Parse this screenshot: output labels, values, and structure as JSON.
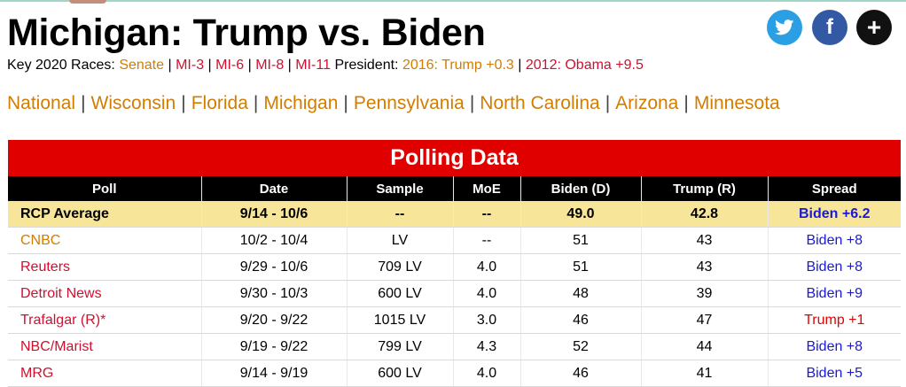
{
  "page": {
    "title": "Michigan: Trump vs. Biden",
    "key_races_label": "Key 2020 Races:",
    "key_races": [
      "Senate",
      "MI-3",
      "MI-6",
      "MI-8",
      "MI-11"
    ],
    "president_label": "President:",
    "president_links": [
      "2016: Trump +0.3",
      "2012: Obama +9.5"
    ]
  },
  "social": {
    "twitter_icon": "twitter-icon",
    "facebook_label": "f",
    "plus_label": "+"
  },
  "nav": {
    "items": [
      "National",
      "Wisconsin",
      "Florida",
      "Michigan",
      "Pennsylvania",
      "North Carolina",
      "Arizona",
      "Minnesota"
    ]
  },
  "table": {
    "title": "Polling Data",
    "headers": [
      "Poll",
      "Date",
      "Sample",
      "MoE",
      "Biden (D)",
      "Trump (R)",
      "Spread"
    ],
    "average": {
      "poll": "RCP Average",
      "date": "9/14 - 10/6",
      "sample": "--",
      "moe": "--",
      "biden": "49.0",
      "trump": "42.8",
      "spread": "Biden +6.2"
    },
    "rows": [
      {
        "poll": "CNBC",
        "date": "10/2 - 10/4",
        "sample": "LV",
        "moe": "--",
        "biden": "51",
        "trump": "43",
        "spread": "Biden +8"
      },
      {
        "poll": "Reuters",
        "date": "9/29 - 10/6",
        "sample": "709 LV",
        "moe": "4.0",
        "biden": "51",
        "trump": "43",
        "spread": "Biden +8"
      },
      {
        "poll": "Detroit News",
        "date": "9/30 - 10/3",
        "sample": "600 LV",
        "moe": "4.0",
        "biden": "48",
        "trump": "39",
        "spread": "Biden +9"
      },
      {
        "poll": "Trafalgar (R)*",
        "date": "9/20 - 9/22",
        "sample": "1015 LV",
        "moe": "3.0",
        "biden": "46",
        "trump": "47",
        "spread": "Trump +1"
      },
      {
        "poll": "NBC/Marist",
        "date": "9/19 - 9/22",
        "sample": "799 LV",
        "moe": "4.3",
        "biden": "52",
        "trump": "44",
        "spread": "Biden +8"
      },
      {
        "poll": "MRG",
        "date": "9/14 - 9/19",
        "sample": "600 LV",
        "moe": "4.0",
        "biden": "46",
        "trump": "41",
        "spread": "Biden +5"
      }
    ]
  },
  "colors": {
    "link_orange": "#d27d00",
    "link_red": "#d10f2f",
    "table_header_red": "#e10000",
    "average_row": "#f7e69a",
    "spread_biden": "#1a1ad6",
    "spread_trump": "#e60000"
  }
}
